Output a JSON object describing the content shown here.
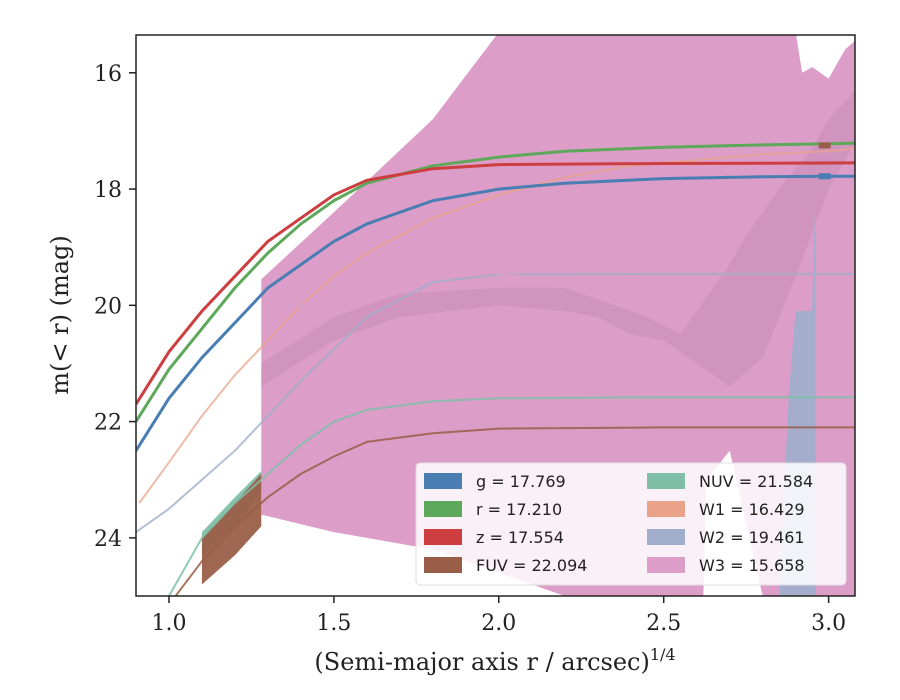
{
  "chart_data": {
    "type": "line",
    "xlabel": "(Semi-major axis r / arcsec)",
    "xlabel_super": "1/4",
    "ylabel": "m(< r) (mag)",
    "xlim": [
      0.9,
      3.08
    ],
    "ylim": [
      25.0,
      15.35
    ],
    "y_inverted": true,
    "grid": false,
    "legend_loc": "lower-right",
    "x_ticks": [
      {
        "v": 1.0,
        "label": "1.0"
      },
      {
        "v": 1.5,
        "label": "1.5"
      },
      {
        "v": 2.0,
        "label": "2.0"
      },
      {
        "v": 2.5,
        "label": "2.5"
      },
      {
        "v": 3.0,
        "label": "3.0"
      }
    ],
    "y_ticks": [
      {
        "v": 16,
        "label": "16"
      },
      {
        "v": 18,
        "label": "18"
      },
      {
        "v": 20,
        "label": "20"
      },
      {
        "v": 22,
        "label": "22"
      },
      {
        "v": 24,
        "label": "24"
      }
    ],
    "series": [
      {
        "key": "W3",
        "legend": "W3 = 15.658",
        "color": "#dc9dc8",
        "band_upper": [
          [
            1.28,
            19.55
          ],
          [
            1.5,
            18.4
          ],
          [
            1.8,
            16.8
          ],
          [
            2.0,
            15.3
          ],
          [
            2.3,
            15.3
          ],
          [
            2.9,
            15.3
          ],
          [
            2.92,
            16.0
          ],
          [
            2.95,
            15.9
          ],
          [
            3.0,
            16.1
          ],
          [
            3.05,
            15.6
          ],
          [
            3.08,
            15.45
          ]
        ],
        "band_lower": [
          [
            1.28,
            23.6
          ],
          [
            1.5,
            23.9
          ],
          [
            1.8,
            24.2
          ],
          [
            2.0,
            24.6
          ],
          [
            2.2,
            25.0
          ],
          [
            2.62,
            25.0
          ],
          [
            2.63,
            23.0
          ],
          [
            2.7,
            22.5
          ],
          [
            2.8,
            25.0
          ],
          [
            3.08,
            25.0
          ]
        ],
        "inner_upper": [
          [
            1.28,
            21.0
          ],
          [
            1.5,
            20.2
          ],
          [
            1.7,
            19.8
          ],
          [
            2.0,
            19.7
          ],
          [
            2.2,
            19.7
          ],
          [
            2.35,
            20.0
          ],
          [
            2.45,
            20.2
          ],
          [
            2.55,
            20.5
          ],
          [
            2.7,
            19.3
          ],
          [
            2.75,
            18.8
          ],
          [
            2.85,
            18.0
          ],
          [
            2.95,
            17.3
          ],
          [
            3.0,
            16.8
          ],
          [
            3.05,
            16.5
          ],
          [
            3.08,
            16.3
          ]
        ],
        "inner_lower": [
          [
            3.08,
            17.2
          ],
          [
            3.0,
            18.0
          ],
          [
            2.9,
            19.5
          ],
          [
            2.8,
            20.9
          ],
          [
            2.7,
            21.4
          ],
          [
            2.6,
            21.0
          ],
          [
            2.5,
            20.6
          ],
          [
            2.4,
            20.5
          ],
          [
            2.3,
            20.2
          ],
          [
            2.2,
            20.1
          ],
          [
            2.0,
            20.0
          ],
          [
            1.7,
            20.2
          ],
          [
            1.5,
            20.6
          ],
          [
            1.28,
            21.4
          ]
        ],
        "curve": [
          [
            1.28,
            20.3
          ],
          [
            1.4,
            20.0
          ],
          [
            1.6,
            19.5
          ],
          [
            1.8,
            19.4
          ],
          [
            2.0,
            19.45
          ],
          [
            2.2,
            19.6
          ],
          [
            2.4,
            19.7
          ]
        ]
      },
      {
        "key": "W2",
        "legend": "W2 = 19.461",
        "color": "#a0aecc",
        "curve": [
          [
            0.9,
            23.9
          ],
          [
            1.0,
            23.5
          ],
          [
            1.2,
            22.5
          ],
          [
            1.4,
            21.3
          ],
          [
            1.6,
            20.2
          ],
          [
            1.8,
            19.6
          ],
          [
            2.0,
            19.47
          ],
          [
            2.5,
            19.46
          ],
          [
            3.08,
            19.46
          ]
        ],
        "band_upper": [
          [
            2.85,
            25.0
          ],
          [
            2.88,
            21.5
          ],
          [
            2.9,
            20.1
          ],
          [
            2.95,
            20.1
          ],
          [
            2.96,
            18.0
          ],
          [
            2.96,
            25.0
          ]
        ]
      },
      {
        "key": "W1",
        "legend": "W1 = 16.429",
        "color": "#eaa389",
        "curve": [
          [
            0.91,
            23.4
          ],
          [
            1.0,
            22.7
          ],
          [
            1.1,
            21.9
          ],
          [
            1.2,
            21.2
          ],
          [
            1.3,
            20.6
          ],
          [
            1.4,
            20.0
          ],
          [
            1.5,
            19.5
          ],
          [
            1.6,
            19.1
          ],
          [
            1.8,
            18.5
          ],
          [
            2.0,
            18.1
          ],
          [
            2.2,
            17.8
          ],
          [
            2.4,
            17.6
          ],
          [
            2.6,
            17.5
          ],
          [
            2.8,
            17.4
          ],
          [
            3.0,
            17.35
          ],
          [
            3.08,
            17.3
          ]
        ]
      },
      {
        "key": "NUV",
        "legend": "NUV = 21.584",
        "color": "#7fbfa8",
        "curve": [
          [
            1.0,
            25.0
          ],
          [
            1.1,
            24.0
          ],
          [
            1.2,
            23.4
          ],
          [
            1.3,
            22.9
          ],
          [
            1.4,
            22.4
          ],
          [
            1.5,
            22.0
          ],
          [
            1.6,
            21.8
          ],
          [
            1.8,
            21.65
          ],
          [
            2.0,
            21.6
          ],
          [
            2.5,
            21.58
          ],
          [
            3.08,
            21.58
          ]
        ],
        "band_upper": [
          [
            1.1,
            23.9
          ],
          [
            1.2,
            23.3
          ],
          [
            1.28,
            22.85
          ],
          [
            1.28,
            23.2
          ],
          [
            1.2,
            23.8
          ],
          [
            1.1,
            24.3
          ]
        ]
      },
      {
        "key": "FUV",
        "legend": "FUV = 22.094",
        "color": "#9a5e48",
        "curve": [
          [
            1.02,
            25.0
          ],
          [
            1.1,
            24.4
          ],
          [
            1.2,
            23.8
          ],
          [
            1.3,
            23.3
          ],
          [
            1.4,
            22.9
          ],
          [
            1.5,
            22.6
          ],
          [
            1.6,
            22.35
          ],
          [
            1.8,
            22.2
          ],
          [
            2.0,
            22.12
          ],
          [
            2.5,
            22.1
          ],
          [
            3.08,
            22.1
          ]
        ],
        "band_upper": [
          [
            1.1,
            24.0
          ],
          [
            1.2,
            23.4
          ],
          [
            1.28,
            22.9
          ],
          [
            1.28,
            23.8
          ],
          [
            1.2,
            24.3
          ],
          [
            1.1,
            24.8
          ]
        ]
      },
      {
        "key": "g",
        "legend": "g = 17.769",
        "color": "#4a7eb3",
        "curve": [
          [
            0.9,
            22.5
          ],
          [
            1.0,
            21.6
          ],
          [
            1.1,
            20.9
          ],
          [
            1.2,
            20.3
          ],
          [
            1.3,
            19.7
          ],
          [
            1.4,
            19.3
          ],
          [
            1.5,
            18.9
          ],
          [
            1.6,
            18.6
          ],
          [
            1.8,
            18.2
          ],
          [
            2.0,
            18.0
          ],
          [
            2.2,
            17.9
          ],
          [
            2.5,
            17.82
          ],
          [
            2.8,
            17.79
          ],
          [
            3.0,
            17.78
          ],
          [
            3.08,
            17.78
          ]
        ]
      },
      {
        "key": "r",
        "legend": "r = 17.210",
        "color": "#5da85a",
        "curve": [
          [
            0.9,
            22.0
          ],
          [
            1.0,
            21.1
          ],
          [
            1.1,
            20.4
          ],
          [
            1.2,
            19.7
          ],
          [
            1.3,
            19.1
          ],
          [
            1.4,
            18.6
          ],
          [
            1.5,
            18.2
          ],
          [
            1.6,
            17.9
          ],
          [
            1.8,
            17.6
          ],
          [
            2.0,
            17.45
          ],
          [
            2.2,
            17.35
          ],
          [
            2.5,
            17.28
          ],
          [
            2.8,
            17.24
          ],
          [
            3.0,
            17.22
          ],
          [
            3.08,
            17.21
          ]
        ]
      },
      {
        "key": "z",
        "legend": "z = 17.554",
        "color": "#cc3e3f",
        "curve": [
          [
            0.9,
            21.7
          ],
          [
            1.0,
            20.8
          ],
          [
            1.1,
            20.1
          ],
          [
            1.2,
            19.5
          ],
          [
            1.3,
            18.9
          ],
          [
            1.4,
            18.5
          ],
          [
            1.5,
            18.1
          ],
          [
            1.6,
            17.85
          ],
          [
            1.8,
            17.65
          ],
          [
            2.0,
            17.58
          ],
          [
            2.5,
            17.56
          ],
          [
            3.08,
            17.55
          ]
        ]
      }
    ],
    "legend_order": [
      "g",
      "r",
      "z",
      "FUV",
      "NUV",
      "W1",
      "W2",
      "W3"
    ]
  }
}
